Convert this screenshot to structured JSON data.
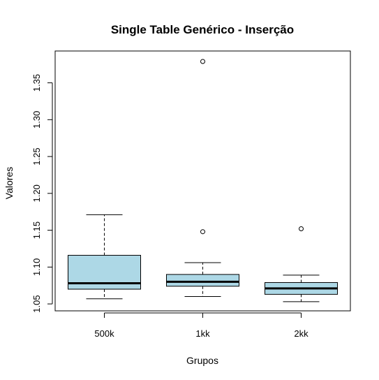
{
  "chart_data": {
    "type": "boxplot",
    "title": "Single Table Genérico - Inserção",
    "xlabel": "Grupos",
    "ylabel": "Valores",
    "categories": [
      "500k",
      "1kk",
      "2kk"
    ],
    "ylim": [
      1.04,
      1.39
    ],
    "yticks": [
      1.05,
      1.1,
      1.15,
      1.2,
      1.25,
      1.3,
      1.35
    ],
    "ytick_labels": [
      "1.05",
      "1.10",
      "1.15",
      "1.20",
      "1.25",
      "1.30",
      "1.35"
    ],
    "box_color": "#add8e6",
    "boxes": [
      {
        "category": "500k",
        "whisker_low": 1.057,
        "q1": 1.07,
        "median": 1.078,
        "q3": 1.116,
        "whisker_high": 1.171,
        "outliers": []
      },
      {
        "category": "1kk",
        "whisker_low": 1.06,
        "q1": 1.074,
        "median": 1.08,
        "q3": 1.09,
        "whisker_high": 1.106,
        "outliers": [
          1.148,
          1.379
        ]
      },
      {
        "category": "2kk",
        "whisker_low": 1.053,
        "q1": 1.063,
        "median": 1.071,
        "q3": 1.079,
        "whisker_high": 1.089,
        "outliers": [
          1.152
        ]
      }
    ],
    "grid": false
  }
}
